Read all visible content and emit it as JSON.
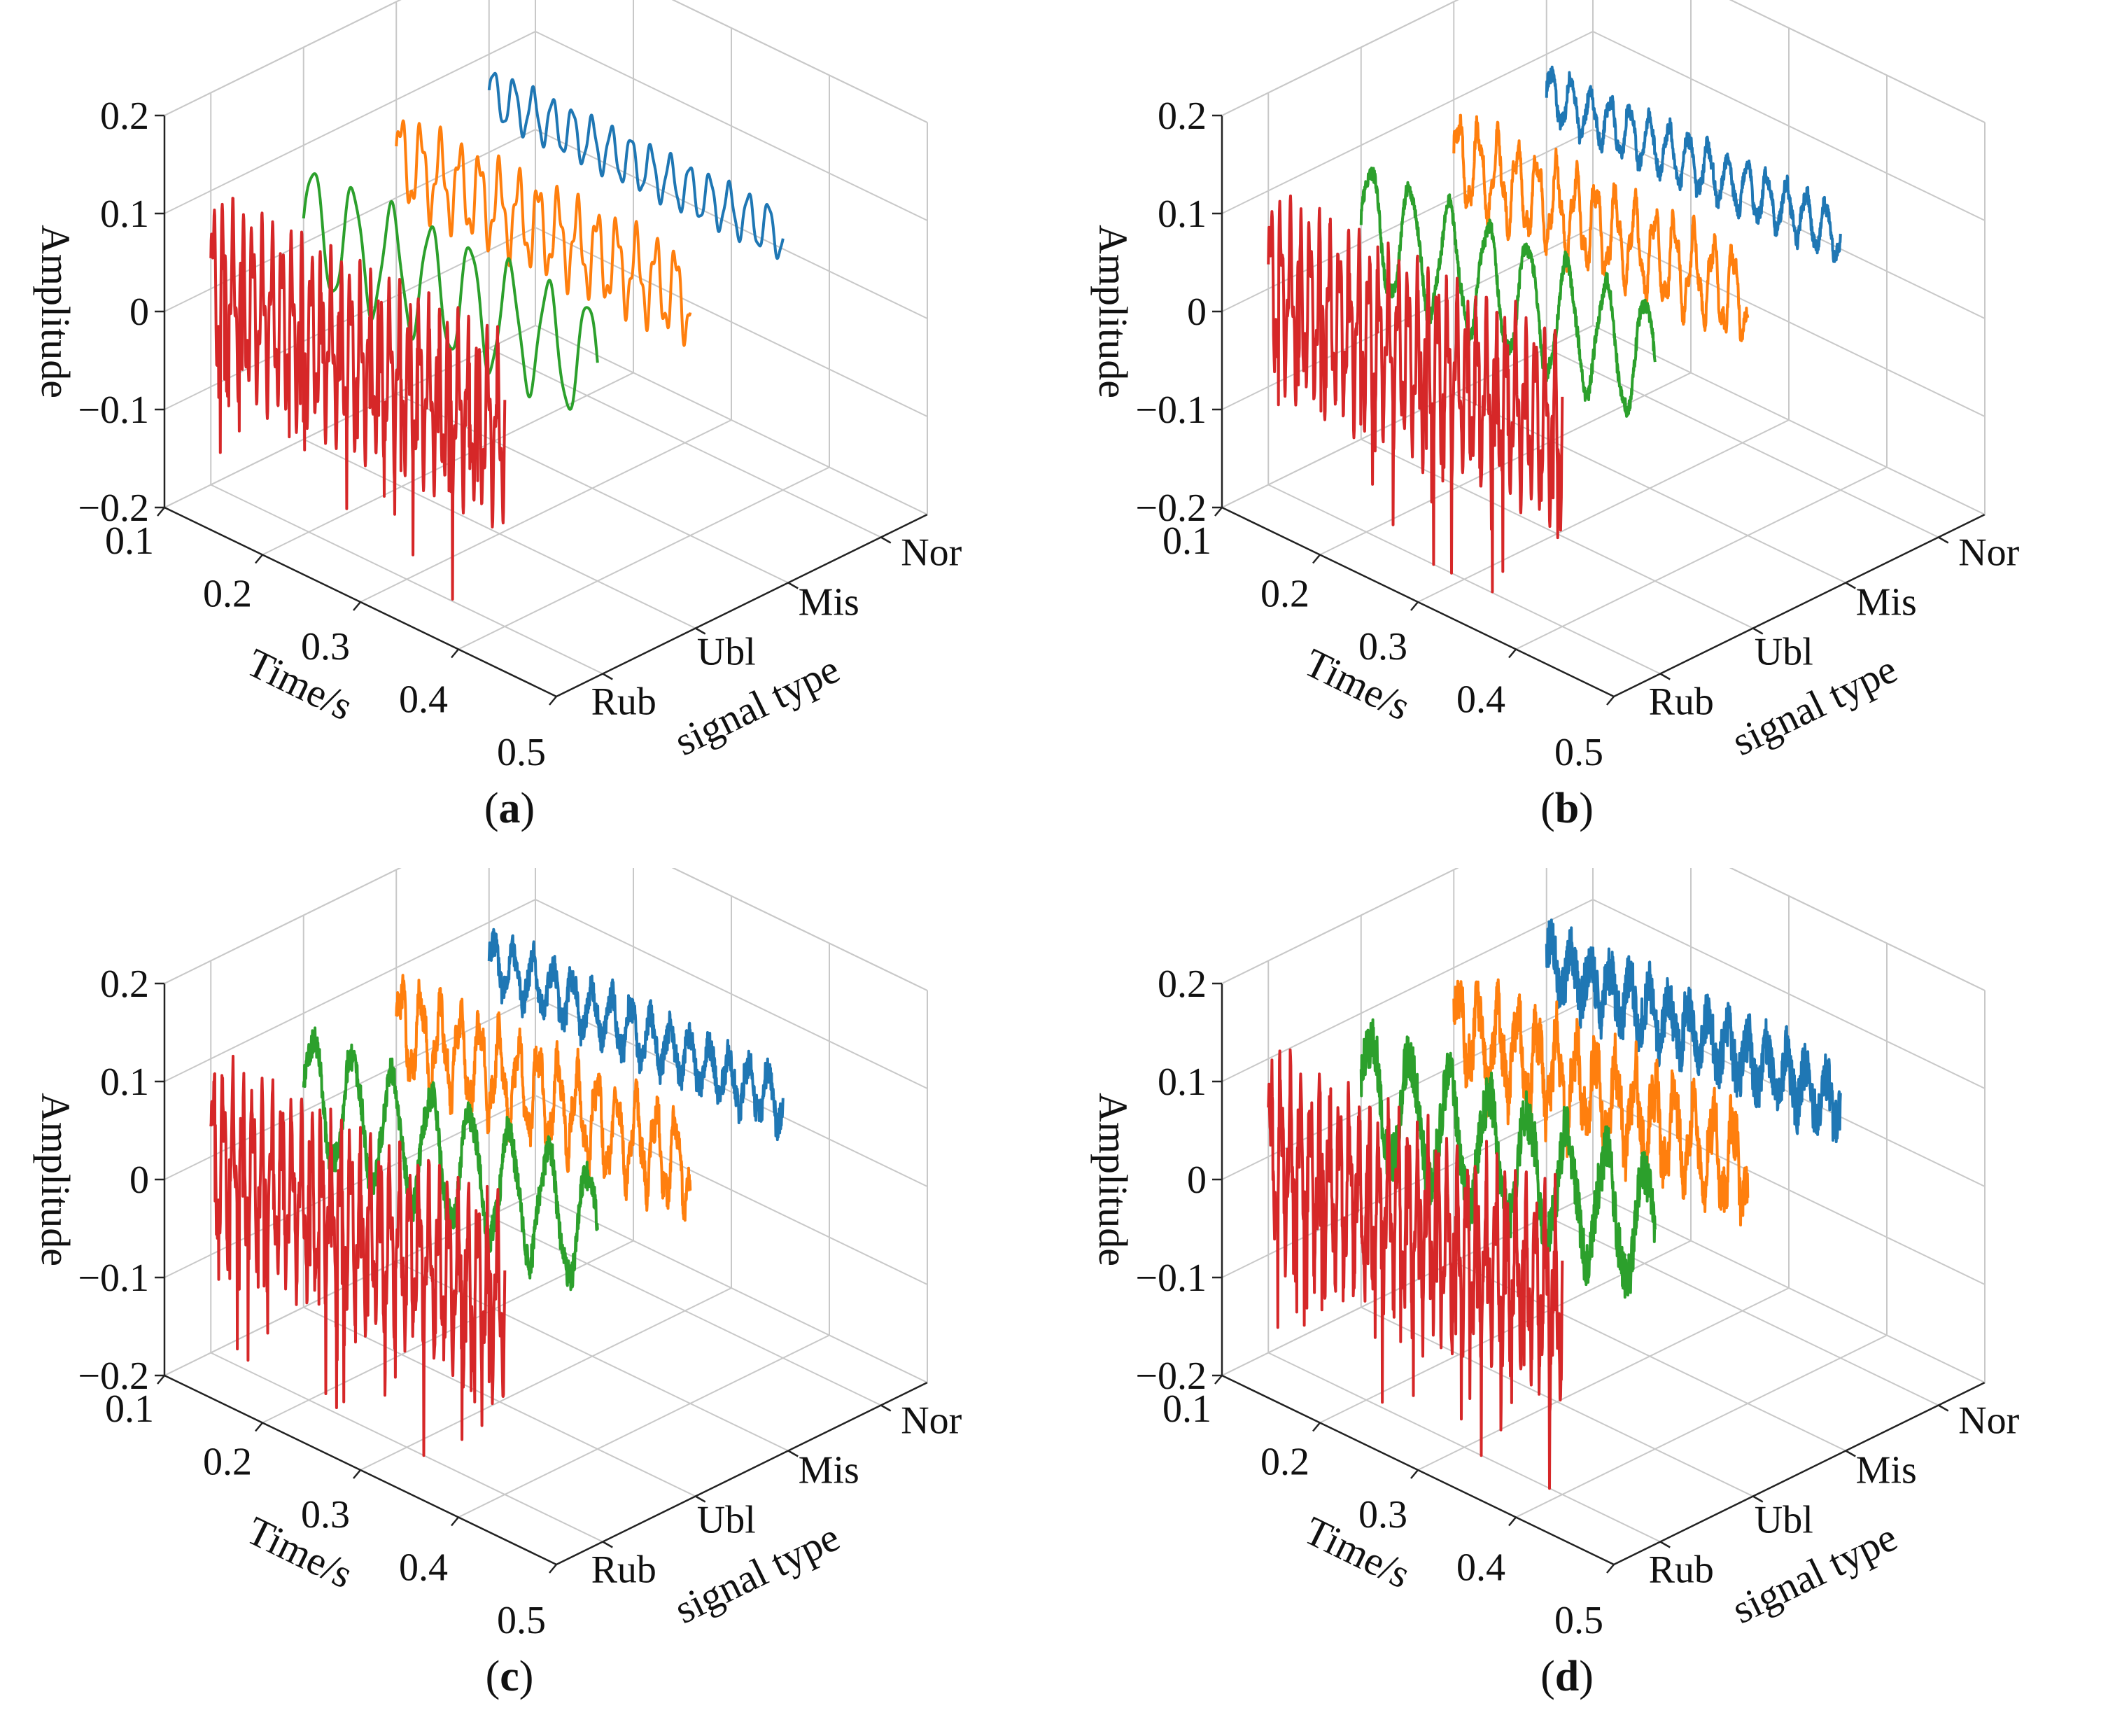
{
  "chart_data": [
    {
      "type": "line",
      "panel_label": "(a)",
      "xlabel": "Time/s",
      "ylabel": "signal type",
      "zlabel": "Amplitude",
      "x_ticks": [
        "0.1",
        "0.2",
        "0.3",
        "0.4",
        "0.5"
      ],
      "categories": [
        "Rub",
        "Ubl",
        "Mis",
        "Nor"
      ],
      "z_ticks": [
        "−0.2",
        "−0.1",
        "0",
        "0.1",
        "0.2"
      ],
      "xlim": [
        0.1,
        0.5
      ],
      "zlim": [
        -0.2,
        0.2
      ],
      "noise": 0.0,
      "series": [
        {
          "category": "Nor",
          "color": "#1f77b4",
          "x_range": [
            0.1,
            0.4
          ],
          "offset": 0.06,
          "amplitude": 0.025,
          "frequency_hz": 50,
          "harmonics": 0.15,
          "spikes": 0
        },
        {
          "category": "Mis",
          "color": "#ff7f0e",
          "x_range": [
            0.1,
            0.4
          ],
          "offset": 0.04,
          "amplitude": 0.04,
          "frequency_hz": 50,
          "harmonics": 0.35,
          "spikes": 0
        },
        {
          "category": "Ubl",
          "color": "#2ca02c",
          "x_range": [
            0.1,
            0.4
          ],
          "offset": 0.02,
          "amplitude": 0.06,
          "frequency_hz": 25,
          "harmonics": 0.1,
          "spikes": 0
        },
        {
          "category": "Rub",
          "color": "#d62728",
          "x_range": [
            0.1,
            0.4
          ],
          "offset": 0.0,
          "amplitude": 0.07,
          "frequency_hz": 100,
          "harmonics": 0.5,
          "spikes": 0.09
        }
      ]
    },
    {
      "type": "line",
      "panel_label": "(b)",
      "xlabel": "Time/s",
      "ylabel": "signal type",
      "zlabel": "Amplitude",
      "x_ticks": [
        "0.1",
        "0.2",
        "0.3",
        "0.4",
        "0.5"
      ],
      "categories": [
        "Rub",
        "Ubl",
        "Mis",
        "Nor"
      ],
      "z_ticks": [
        "−0.2",
        "−0.1",
        "0",
        "0.1",
        "0.2"
      ],
      "xlim": [
        0.1,
        0.5
      ],
      "zlim": [
        -0.2,
        0.2
      ],
      "noise": 0.008,
      "series": [
        {
          "category": "Nor",
          "color": "#1f77b4",
          "x_range": [
            0.1,
            0.4
          ],
          "offset": 0.06,
          "amplitude": 0.025,
          "frequency_hz": 50,
          "harmonics": 0.15,
          "spikes": 0
        },
        {
          "category": "Mis",
          "color": "#ff7f0e",
          "x_range": [
            0.1,
            0.4
          ],
          "offset": 0.04,
          "amplitude": 0.04,
          "frequency_hz": 50,
          "harmonics": 0.35,
          "spikes": 0
        },
        {
          "category": "Ubl",
          "color": "#2ca02c",
          "x_range": [
            0.1,
            0.4
          ],
          "offset": 0.02,
          "amplitude": 0.06,
          "frequency_hz": 25,
          "harmonics": 0.1,
          "spikes": 0
        },
        {
          "category": "Rub",
          "color": "#d62728",
          "x_range": [
            0.1,
            0.4
          ],
          "offset": 0.0,
          "amplitude": 0.07,
          "frequency_hz": 100,
          "harmonics": 0.5,
          "spikes": 0.09
        }
      ]
    },
    {
      "type": "line",
      "panel_label": "(c)",
      "xlabel": "Time/s",
      "ylabel": "signal type",
      "zlabel": "Amplitude",
      "x_ticks": [
        "0.1",
        "0.2",
        "0.3",
        "0.4",
        "0.5"
      ],
      "categories": [
        "Rub",
        "Ubl",
        "Mis",
        "Nor"
      ],
      "z_ticks": [
        "−0.2",
        "−0.1",
        "0",
        "0.1",
        "0.2"
      ],
      "xlim": [
        0.1,
        0.5
      ],
      "zlim": [
        -0.2,
        0.2
      ],
      "noise": 0.015,
      "series": [
        {
          "category": "Nor",
          "color": "#1f77b4",
          "x_range": [
            0.1,
            0.4
          ],
          "offset": 0.06,
          "amplitude": 0.025,
          "frequency_hz": 50,
          "harmonics": 0.15,
          "spikes": 0
        },
        {
          "category": "Mis",
          "color": "#ff7f0e",
          "x_range": [
            0.1,
            0.4
          ],
          "offset": 0.04,
          "amplitude": 0.04,
          "frequency_hz": 50,
          "harmonics": 0.35,
          "spikes": 0
        },
        {
          "category": "Ubl",
          "color": "#2ca02c",
          "x_range": [
            0.1,
            0.4
          ],
          "offset": 0.02,
          "amplitude": 0.06,
          "frequency_hz": 25,
          "harmonics": 0.1,
          "spikes": 0
        },
        {
          "category": "Rub",
          "color": "#d62728",
          "x_range": [
            0.1,
            0.4
          ],
          "offset": 0.0,
          "amplitude": 0.07,
          "frequency_hz": 100,
          "harmonics": 0.5,
          "spikes": 0.09
        }
      ]
    },
    {
      "type": "line",
      "panel_label": "(d)",
      "xlabel": "Time/s",
      "ylabel": "signal type",
      "zlabel": "Amplitude",
      "x_ticks": [
        "0.1",
        "0.2",
        "0.3",
        "0.4",
        "0.5"
      ],
      "categories": [
        "Rub",
        "Ubl",
        "Mis",
        "Nor"
      ],
      "z_ticks": [
        "−0.2",
        "−0.1",
        "0",
        "0.1",
        "0.2"
      ],
      "xlim": [
        0.1,
        0.5
      ],
      "zlim": [
        -0.2,
        0.2
      ],
      "noise": 0.025,
      "series": [
        {
          "category": "Nor",
          "color": "#1f77b4",
          "x_range": [
            0.1,
            0.4
          ],
          "offset": 0.06,
          "amplitude": 0.025,
          "frequency_hz": 50,
          "harmonics": 0.15,
          "spikes": 0
        },
        {
          "category": "Mis",
          "color": "#ff7f0e",
          "x_range": [
            0.1,
            0.4
          ],
          "offset": 0.04,
          "amplitude": 0.04,
          "frequency_hz": 50,
          "harmonics": 0.35,
          "spikes": 0
        },
        {
          "category": "Ubl",
          "color": "#2ca02c",
          "x_range": [
            0.1,
            0.4
          ],
          "offset": 0.02,
          "amplitude": 0.06,
          "frequency_hz": 25,
          "harmonics": 0.1,
          "spikes": 0
        },
        {
          "category": "Rub",
          "color": "#d62728",
          "x_range": [
            0.1,
            0.4
          ],
          "offset": 0.0,
          "amplitude": 0.07,
          "frequency_hz": 100,
          "harmonics": 0.5,
          "spikes": 0.09
        }
      ]
    }
  ]
}
